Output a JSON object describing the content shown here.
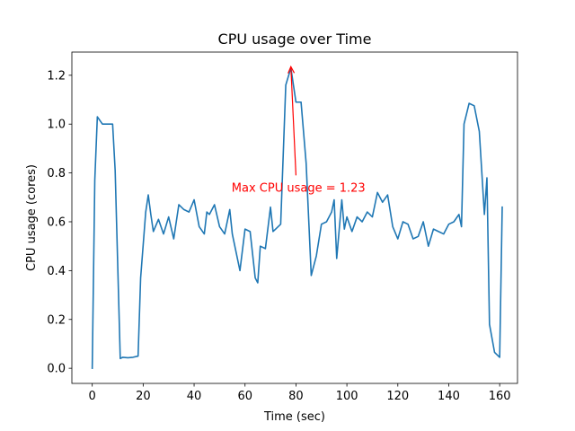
{
  "chart_data": {
    "type": "line",
    "title": "CPU usage over Time",
    "xlabel": "Time (sec)",
    "ylabel": "CPU usage (cores)",
    "xlim": [
      -8,
      167
    ],
    "ylim": [
      -0.062,
      1.295
    ],
    "xticks": [
      0,
      20,
      40,
      60,
      80,
      100,
      120,
      140,
      160
    ],
    "yticks": [
      0.0,
      0.2,
      0.4,
      0.6,
      0.8,
      1.0,
      1.2
    ],
    "xtick_labels": [
      "0",
      "20",
      "40",
      "60",
      "80",
      "100",
      "120",
      "140",
      "160"
    ],
    "ytick_labels": [
      "0.0",
      "0.2",
      "0.4",
      "0.6",
      "0.8",
      "1.0",
      "1.2"
    ],
    "series": [
      {
        "name": "CPU usage",
        "color": "#1f77b4",
        "x": [
          0,
          1,
          2,
          4,
          6,
          8,
          9,
          11,
          12,
          14,
          16,
          18,
          19,
          21,
          22,
          23,
          24,
          26,
          28,
          30,
          32,
          34,
          36,
          38,
          40,
          42,
          44,
          45,
          46,
          48,
          50,
          52,
          54,
          55,
          56,
          58,
          60,
          62,
          64,
          65,
          66,
          68,
          70,
          71,
          72,
          74,
          76,
          78,
          80,
          82,
          84,
          86,
          88,
          90,
          92,
          94,
          95,
          96,
          98,
          99,
          100,
          102,
          104,
          106,
          108,
          110,
          112,
          114,
          116,
          118,
          120,
          122,
          124,
          126,
          128,
          130,
          132,
          134,
          136,
          138,
          140,
          142,
          144,
          145,
          146,
          148,
          150,
          152,
          154,
          155,
          156,
          158,
          160,
          161
        ],
        "values": [
          0.0,
          0.77,
          1.03,
          1.0,
          1.0,
          1.0,
          0.81,
          0.04,
          0.045,
          0.043,
          0.045,
          0.05,
          0.37,
          0.64,
          0.71,
          0.63,
          0.56,
          0.61,
          0.55,
          0.62,
          0.53,
          0.67,
          0.65,
          0.64,
          0.69,
          0.58,
          0.55,
          0.64,
          0.63,
          0.67,
          0.58,
          0.55,
          0.65,
          0.55,
          0.5,
          0.4,
          0.57,
          0.56,
          0.37,
          0.35,
          0.5,
          0.49,
          0.66,
          0.56,
          0.57,
          0.59,
          1.16,
          1.23,
          1.09,
          1.09,
          0.84,
          0.38,
          0.46,
          0.59,
          0.6,
          0.64,
          0.69,
          0.45,
          0.69,
          0.57,
          0.62,
          0.56,
          0.62,
          0.6,
          0.64,
          0.62,
          0.72,
          0.68,
          0.71,
          0.58,
          0.53,
          0.6,
          0.59,
          0.53,
          0.54,
          0.6,
          0.5,
          0.57,
          0.56,
          0.55,
          0.59,
          0.6,
          0.63,
          0.58,
          1.0,
          1.085,
          1.075,
          0.97,
          0.63,
          0.78,
          0.18,
          0.065,
          0.045,
          0.66
        ]
      }
    ],
    "annotation": {
      "text": "Max CPU usage = 1.23",
      "color": "#ff0000",
      "xy": [
        78,
        1.235
      ],
      "xytext": [
        80,
        0.79
      ],
      "text_position": [
        81,
        0.74
      ]
    }
  }
}
